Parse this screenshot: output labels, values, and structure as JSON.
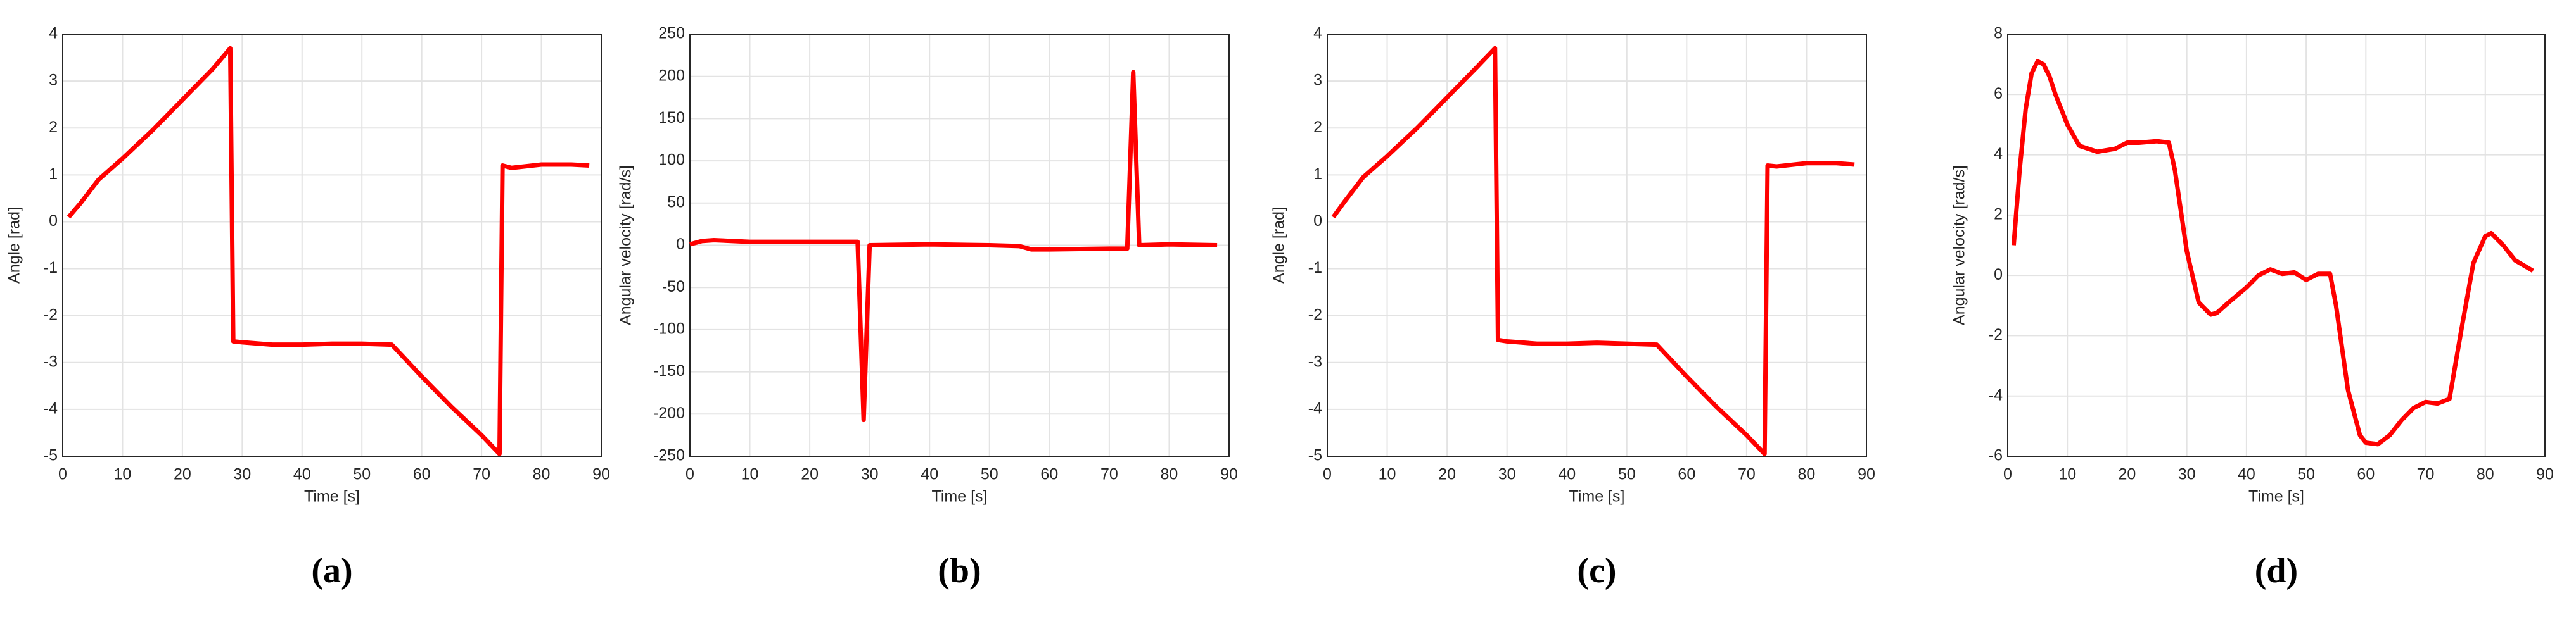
{
  "chart_data": [
    {
      "type": "line",
      "caption": "(a)",
      "x_label": "Time [s]",
      "y_label": "Angle [rad]",
      "xlim": [
        0,
        90
      ],
      "ylim": [
        -5,
        4
      ],
      "xticks": [
        0,
        10,
        20,
        30,
        40,
        50,
        60,
        70,
        80,
        90
      ],
      "yticks": [
        -5,
        -4,
        -3,
        -2,
        -1,
        0,
        1,
        2,
        3,
        4
      ],
      "grid": true,
      "x": [
        1,
        3,
        6,
        10,
        15,
        20,
        25,
        28,
        28.5,
        30,
        35,
        40,
        45,
        50,
        55,
        60,
        65,
        70,
        73,
        73.5,
        75,
        80,
        85,
        88
      ],
      "series": [
        {
          "color": "#ff0000",
          "values": [
            0.1,
            0.4,
            0.9,
            1.35,
            1.95,
            2.6,
            3.25,
            3.7,
            -2.55,
            -2.57,
            -2.62,
            -2.62,
            -2.6,
            -2.6,
            -2.62,
            -3.3,
            -3.95,
            -4.55,
            -4.95,
            1.2,
            1.15,
            1.22,
            1.22,
            1.2
          ]
        }
      ]
    },
    {
      "type": "line",
      "caption": "(b)",
      "x_label": "Time [s]",
      "y_label": "Angular velocity [rad/s]",
      "xlim": [
        0,
        90
      ],
      "ylim": [
        -250,
        250
      ],
      "xticks": [
        0,
        10,
        20,
        30,
        40,
        50,
        60,
        70,
        80,
        90
      ],
      "yticks": [
        -250,
        -200,
        -150,
        -100,
        -50,
        0,
        50,
        100,
        150,
        200,
        250
      ],
      "grid": true,
      "x": [
        0,
        2,
        4,
        10,
        20,
        28,
        29,
        30,
        40,
        50,
        55,
        57,
        60,
        70,
        73,
        74,
        75,
        80,
        88
      ],
      "series": [
        {
          "color": "#ff0000",
          "values": [
            1,
            5,
            6,
            4,
            4,
            4,
            -207,
            0,
            1,
            0,
            -1,
            -5,
            -5,
            -4,
            -4,
            205,
            0,
            1,
            0
          ]
        }
      ]
    },
    {
      "type": "line",
      "caption": "(c)",
      "x_label": "Time [s]",
      "y_label": "Angle [rad]",
      "xlim": [
        0,
        90
      ],
      "ylim": [
        -5,
        4
      ],
      "xticks": [
        0,
        10,
        20,
        30,
        40,
        50,
        60,
        70,
        80,
        90
      ],
      "yticks": [
        -5,
        -4,
        -3,
        -2,
        -1,
        0,
        1,
        2,
        3,
        4
      ],
      "grid": true,
      "x": [
        1,
        3,
        6,
        10,
        15,
        20,
        25,
        28,
        28.5,
        30,
        35,
        40,
        45,
        50,
        55,
        60,
        65,
        70,
        73,
        73.5,
        75,
        80,
        85,
        88
      ],
      "series": [
        {
          "color": "#ff0000",
          "values": [
            0.1,
            0.45,
            0.95,
            1.4,
            2.0,
            2.65,
            3.3,
            3.7,
            -2.52,
            -2.55,
            -2.6,
            -2.6,
            -2.58,
            -2.6,
            -2.62,
            -3.3,
            -3.95,
            -4.55,
            -4.95,
            1.2,
            1.18,
            1.25,
            1.25,
            1.22
          ]
        }
      ]
    },
    {
      "type": "line",
      "caption": "(d)",
      "x_label": "Time [s]",
      "y_label": "Angular velocity [rad/s]",
      "xlim": [
        0,
        90
      ],
      "ylim": [
        -6,
        8
      ],
      "xticks": [
        0,
        10,
        20,
        30,
        40,
        50,
        60,
        70,
        80,
        90
      ],
      "yticks": [
        -6,
        -4,
        -2,
        0,
        2,
        4,
        6,
        8
      ],
      "grid": true,
      "x": [
        1,
        2,
        3,
        4,
        5,
        6,
        7,
        8,
        10,
        12,
        15,
        18,
        20,
        22,
        25,
        27,
        28,
        30,
        32,
        34,
        35,
        37,
        40,
        42,
        44,
        46,
        48,
        50,
        52,
        54,
        55,
        57,
        59,
        60,
        62,
        64,
        66,
        68,
        70,
        72,
        74,
        76,
        78,
        80,
        81,
        83,
        85,
        88
      ],
      "series": [
        {
          "color": "#ff0000",
          "values": [
            1,
            3.5,
            5.5,
            6.7,
            7.1,
            7.0,
            6.6,
            6.0,
            5.0,
            4.3,
            4.1,
            4.2,
            4.4,
            4.4,
            4.45,
            4.4,
            3.5,
            0.8,
            -0.9,
            -1.3,
            -1.25,
            -0.9,
            -0.4,
            0,
            0.2,
            0.05,
            0.1,
            -0.15,
            0.05,
            0.05,
            -1,
            -3.8,
            -5.3,
            -5.55,
            -5.6,
            -5.3,
            -4.8,
            -4.4,
            -4.2,
            -4.25,
            -4.1,
            -1.8,
            0.4,
            1.3,
            1.4,
            1.0,
            0.5,
            0.15
          ]
        }
      ]
    }
  ]
}
